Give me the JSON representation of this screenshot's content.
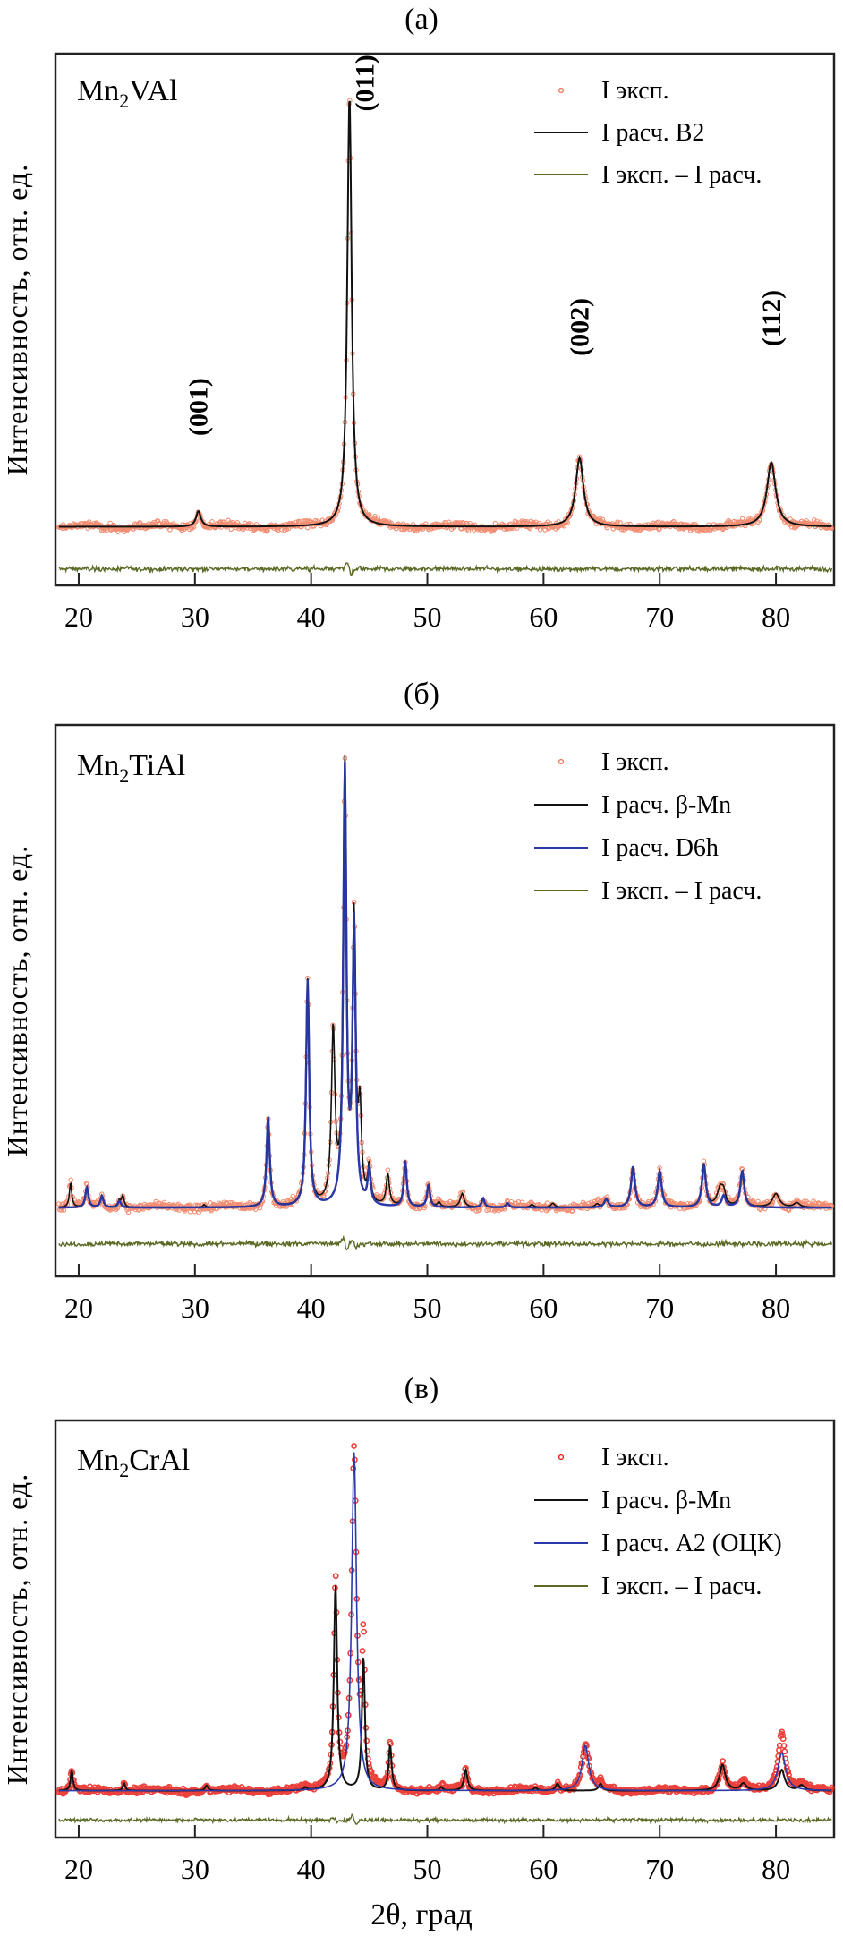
{
  "figure": {
    "xlabel": "2θ, град",
    "ylabel": "Интенсивность, отн. ед."
  },
  "colors": {
    "exp": "#f07a5a",
    "exp_c": "#e8201a",
    "calc_black": "#111111",
    "calc_blue": "#2b3aa8",
    "diff": "#5a6a25"
  },
  "chart_data": [
    {
      "type": "line",
      "panel_label": "(a)",
      "compound": {
        "base": "Mn",
        "sub": "2",
        "rest": "VAl"
      },
      "xlabel": "",
      "ylabel": "Интенсивность, отн. ед.",
      "xlim": [
        18,
        85
      ],
      "xticks": [
        20,
        30,
        40,
        50,
        60,
        70,
        80
      ],
      "ylim": [
        -0.12,
        1.05
      ],
      "legend_position": "top-right",
      "legend": [
        {
          "label": "I эксп.",
          "kind": "marker",
          "series": "exp"
        },
        {
          "label": "I расч. B2",
          "kind": "line",
          "series": "calc_black"
        },
        {
          "label": "I эксп. – I расч.",
          "kind": "line",
          "series": "diff"
        }
      ],
      "baseline": 0.0,
      "diff_offset": -0.095,
      "peaks_calc_black": [
        {
          "x": 30.3,
          "h": 0.035,
          "w": 0.25
        },
        {
          "x": 43.3,
          "h": 0.975,
          "w": 0.22
        },
        {
          "x": 63.1,
          "h": 0.155,
          "w": 0.4
        },
        {
          "x": 79.6,
          "h": 0.145,
          "w": 0.45
        }
      ],
      "annotations": [
        {
          "text": "(001)",
          "x": 30.3,
          "y": 0.27
        },
        {
          "text": "(011)",
          "x": 44.6,
          "y": 1.0
        },
        {
          "text": "(002)",
          "x": 63.1,
          "y": 0.45
        },
        {
          "text": "(112)",
          "x": 79.6,
          "y": 0.47
        }
      ]
    },
    {
      "type": "line",
      "panel_label": "(б)",
      "compound": {
        "base": "Mn",
        "sub": "2",
        "rest": "TiAl"
      },
      "xlabel": "",
      "ylabel": "Интенсивность, отн. ед.",
      "xlim": [
        18,
        85
      ],
      "xticks": [
        20,
        30,
        40,
        50,
        60,
        70,
        80
      ],
      "ylim": [
        -0.14,
        1.05
      ],
      "legend_position": "top-right",
      "legend": [
        {
          "label": "I эксп.",
          "kind": "marker",
          "series": "exp"
        },
        {
          "label": "I расч. β-Mn",
          "kind": "line",
          "series": "calc_black"
        },
        {
          "label": "I расч. D6h",
          "kind": "line",
          "series": "calc_blue"
        },
        {
          "label": "I эксп. – I расч.",
          "kind": "line",
          "series": "diff"
        }
      ],
      "baseline": 0.0,
      "diff_offset": -0.08,
      "peaks_calc_blue": [
        {
          "x": 20.7,
          "h": 0.045,
          "w": 0.15
        },
        {
          "x": 22.0,
          "h": 0.025,
          "w": 0.15
        },
        {
          "x": 23.5,
          "h": 0.015,
          "w": 0.15
        },
        {
          "x": 36.3,
          "h": 0.2,
          "w": 0.16
        },
        {
          "x": 39.7,
          "h": 0.5,
          "w": 0.16
        },
        {
          "x": 42.9,
          "h": 0.96,
          "w": 0.16
        },
        {
          "x": 43.7,
          "h": 0.615,
          "w": 0.16
        },
        {
          "x": 45.0,
          "h": 0.08,
          "w": 0.15
        },
        {
          "x": 48.1,
          "h": 0.1,
          "w": 0.15
        },
        {
          "x": 50.1,
          "h": 0.05,
          "w": 0.15
        },
        {
          "x": 54.8,
          "h": 0.02,
          "w": 0.15
        },
        {
          "x": 56.9,
          "h": 0.01,
          "w": 0.15
        },
        {
          "x": 65.4,
          "h": 0.018,
          "w": 0.2
        },
        {
          "x": 67.7,
          "h": 0.09,
          "w": 0.2
        },
        {
          "x": 70.0,
          "h": 0.08,
          "w": 0.2
        },
        {
          "x": 73.8,
          "h": 0.095,
          "w": 0.2
        },
        {
          "x": 75.5,
          "h": 0.025,
          "w": 0.2
        },
        {
          "x": 77.1,
          "h": 0.08,
          "w": 0.2
        }
      ],
      "peaks_calc_black": [
        {
          "x": 19.3,
          "h": 0.055,
          "w": 0.12
        },
        {
          "x": 23.8,
          "h": 0.025,
          "w": 0.12
        },
        {
          "x": 30.8,
          "h": 0.006,
          "w": 0.12
        },
        {
          "x": 41.9,
          "h": 0.38,
          "w": 0.18
        },
        {
          "x": 44.2,
          "h": 0.19,
          "w": 0.16
        },
        {
          "x": 46.6,
          "h": 0.07,
          "w": 0.16
        },
        {
          "x": 51.0,
          "h": 0.01,
          "w": 0.15
        },
        {
          "x": 53.0,
          "h": 0.03,
          "w": 0.2
        },
        {
          "x": 59.0,
          "h": 0.006,
          "w": 0.2
        },
        {
          "x": 60.8,
          "h": 0.009,
          "w": 0.2
        },
        {
          "x": 64.6,
          "h": 0.007,
          "w": 0.2
        },
        {
          "x": 75.2,
          "h": 0.04,
          "w": 0.3
        },
        {
          "x": 80.0,
          "h": 0.03,
          "w": 0.35
        },
        {
          "x": 81.8,
          "h": 0.01,
          "w": 0.3
        }
      ]
    },
    {
      "type": "line",
      "panel_label": "(в)",
      "compound": {
        "base": "Mn",
        "sub": "2",
        "rest": "CrAl"
      },
      "xlabel": "2θ, град",
      "ylabel": "Интенсивность, отн. ед.",
      "xlim": [
        18,
        85
      ],
      "xticks": [
        20,
        30,
        40,
        50,
        60,
        70,
        80
      ],
      "ylim": [
        -0.12,
        1.05
      ],
      "legend_position": "top-right",
      "legend": [
        {
          "label": "I эксп.",
          "kind": "marker",
          "series": "exp_c"
        },
        {
          "label": "I расч. β-Mn",
          "kind": "line",
          "series": "calc_black"
        },
        {
          "label": "I расч. A2 (ОЦК)",
          "kind": "line",
          "series": "calc_blue"
        },
        {
          "label": "I эксп. – I расч.",
          "kind": "line",
          "series": "diff"
        }
      ],
      "baseline": 0.0,
      "diff_offset": -0.085,
      "peaks_calc_blue": [
        {
          "x": 43.7,
          "h": 0.98,
          "w": 0.25
        },
        {
          "x": 63.6,
          "h": 0.13,
          "w": 0.35
        },
        {
          "x": 80.5,
          "h": 0.11,
          "w": 0.4
        }
      ],
      "peaks_calc_black": [
        {
          "x": 19.4,
          "h": 0.06,
          "w": 0.12
        },
        {
          "x": 23.9,
          "h": 0.022,
          "w": 0.12
        },
        {
          "x": 31.0,
          "h": 0.015,
          "w": 0.15
        },
        {
          "x": 39.5,
          "h": 0.008,
          "w": 0.15
        },
        {
          "x": 42.1,
          "h": 0.6,
          "w": 0.17
        },
        {
          "x": 44.5,
          "h": 0.39,
          "w": 0.15
        },
        {
          "x": 46.8,
          "h": 0.13,
          "w": 0.15
        },
        {
          "x": 51.2,
          "h": 0.01,
          "w": 0.15
        },
        {
          "x": 53.3,
          "h": 0.06,
          "w": 0.18
        },
        {
          "x": 59.3,
          "h": 0.008,
          "w": 0.2
        },
        {
          "x": 61.2,
          "h": 0.02,
          "w": 0.2
        },
        {
          "x": 64.9,
          "h": 0.02,
          "w": 0.2
        },
        {
          "x": 75.4,
          "h": 0.075,
          "w": 0.3
        },
        {
          "x": 77.2,
          "h": 0.02,
          "w": 0.3
        },
        {
          "x": 80.5,
          "h": 0.06,
          "w": 0.3
        },
        {
          "x": 82.2,
          "h": 0.015,
          "w": 0.3
        }
      ]
    }
  ]
}
